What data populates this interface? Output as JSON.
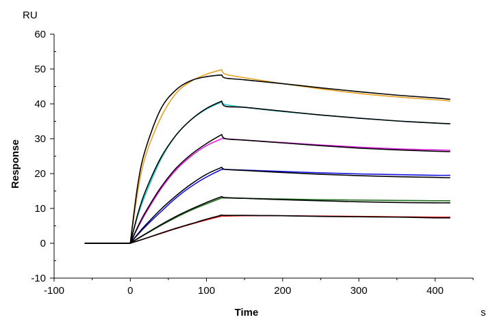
{
  "chart_data": {
    "type": "line",
    "title": "",
    "xlabel": "Time",
    "ylabel": "Response",
    "x_unit": "s",
    "y_unit": "RU",
    "xlim": [
      -100,
      450
    ],
    "ylim": [
      -10,
      60
    ],
    "x_ticks": [
      -100,
      0,
      100,
      200,
      300,
      400
    ],
    "y_ticks": [
      -10,
      0,
      10,
      20,
      30,
      40,
      50,
      60
    ],
    "grid": false,
    "legend": "none",
    "x": [
      -60,
      0,
      10,
      20,
      40,
      60,
      80,
      100,
      120,
      125,
      150,
      200,
      250,
      300,
      350,
      400,
      420
    ],
    "series": [
      {
        "role": "measured",
        "color": "#e8a020",
        "values": [
          0,
          0,
          15,
          25,
          36,
          43,
          46.5,
          48.5,
          49.8,
          48.5,
          47.5,
          45.8,
          44.3,
          43,
          42,
          41.2,
          40.8
        ]
      },
      {
        "role": "measured",
        "color": "#20c8d0",
        "values": [
          0,
          0,
          8,
          14,
          24,
          31,
          35.5,
          38.5,
          40.5,
          39.8,
          39,
          37.8,
          36.8,
          35.9,
          35.1,
          34.5,
          34.3
        ]
      },
      {
        "role": "measured",
        "color": "#e020e0",
        "values": [
          0,
          0,
          4.5,
          8.5,
          15.5,
          21,
          25,
          28,
          30,
          30,
          29.6,
          28.9,
          28.2,
          27.6,
          27.1,
          26.8,
          26.7
        ]
      },
      {
        "role": "measured",
        "color": "#1010e0",
        "values": [
          0,
          0,
          2.5,
          4.8,
          9,
          13,
          16.3,
          19,
          21.2,
          21.2,
          21,
          20.6,
          20.2,
          19.9,
          19.7,
          19.5,
          19.5
        ]
      },
      {
        "role": "measured",
        "color": "#207020",
        "values": [
          0,
          0,
          1.3,
          2.6,
          5.1,
          7.4,
          9.5,
          11.3,
          13,
          13,
          12.9,
          12.7,
          12.5,
          12.4,
          12.3,
          12.2,
          12.2
        ]
      },
      {
        "role": "measured",
        "color": "#e01010",
        "values": [
          0,
          0,
          0.7,
          1.4,
          2.8,
          4.2,
          5.5,
          6.7,
          7.8,
          7.8,
          7.9,
          7.9,
          7.8,
          7.7,
          7.6,
          7.5,
          7.5
        ]
      },
      {
        "role": "fit",
        "color": "#000000",
        "values": [
          0,
          0,
          17,
          27,
          38.5,
          44,
          46.7,
          47.8,
          48.3,
          47.4,
          46.9,
          45.8,
          44.6,
          43.5,
          42.5,
          41.7,
          41.3
        ]
      },
      {
        "role": "fit",
        "color": "#000000",
        "values": [
          0,
          0,
          8.5,
          15,
          24.5,
          31,
          35.5,
          38.7,
          40.8,
          39.3,
          39,
          37.9,
          36.8,
          35.9,
          35.1,
          34.5,
          34.3
        ]
      },
      {
        "role": "fit",
        "color": "#000000",
        "values": [
          0,
          0,
          4.8,
          9,
          16,
          21.5,
          25.5,
          28.6,
          31.2,
          30,
          29.6,
          28.8,
          28,
          27.3,
          26.8,
          26.4,
          26.3
        ]
      },
      {
        "role": "fit",
        "color": "#000000",
        "values": [
          0,
          0,
          2.7,
          5.2,
          9.7,
          13.6,
          17,
          19.8,
          21.8,
          21.2,
          20.9,
          20.3,
          19.8,
          19.4,
          19.1,
          18.9,
          18.8
        ]
      },
      {
        "role": "fit",
        "color": "#000000",
        "values": [
          0,
          0,
          1.4,
          2.7,
          5.3,
          7.7,
          9.8,
          11.7,
          13.4,
          13.1,
          12.9,
          12.5,
          12.2,
          11.9,
          11.7,
          11.6,
          11.6
        ]
      },
      {
        "role": "fit",
        "color": "#000000",
        "values": [
          0,
          0,
          0.7,
          1.4,
          2.9,
          4.3,
          5.6,
          6.9,
          8.1,
          8,
          8,
          7.9,
          7.7,
          7.6,
          7.5,
          7.3,
          7.3
        ]
      }
    ]
  }
}
